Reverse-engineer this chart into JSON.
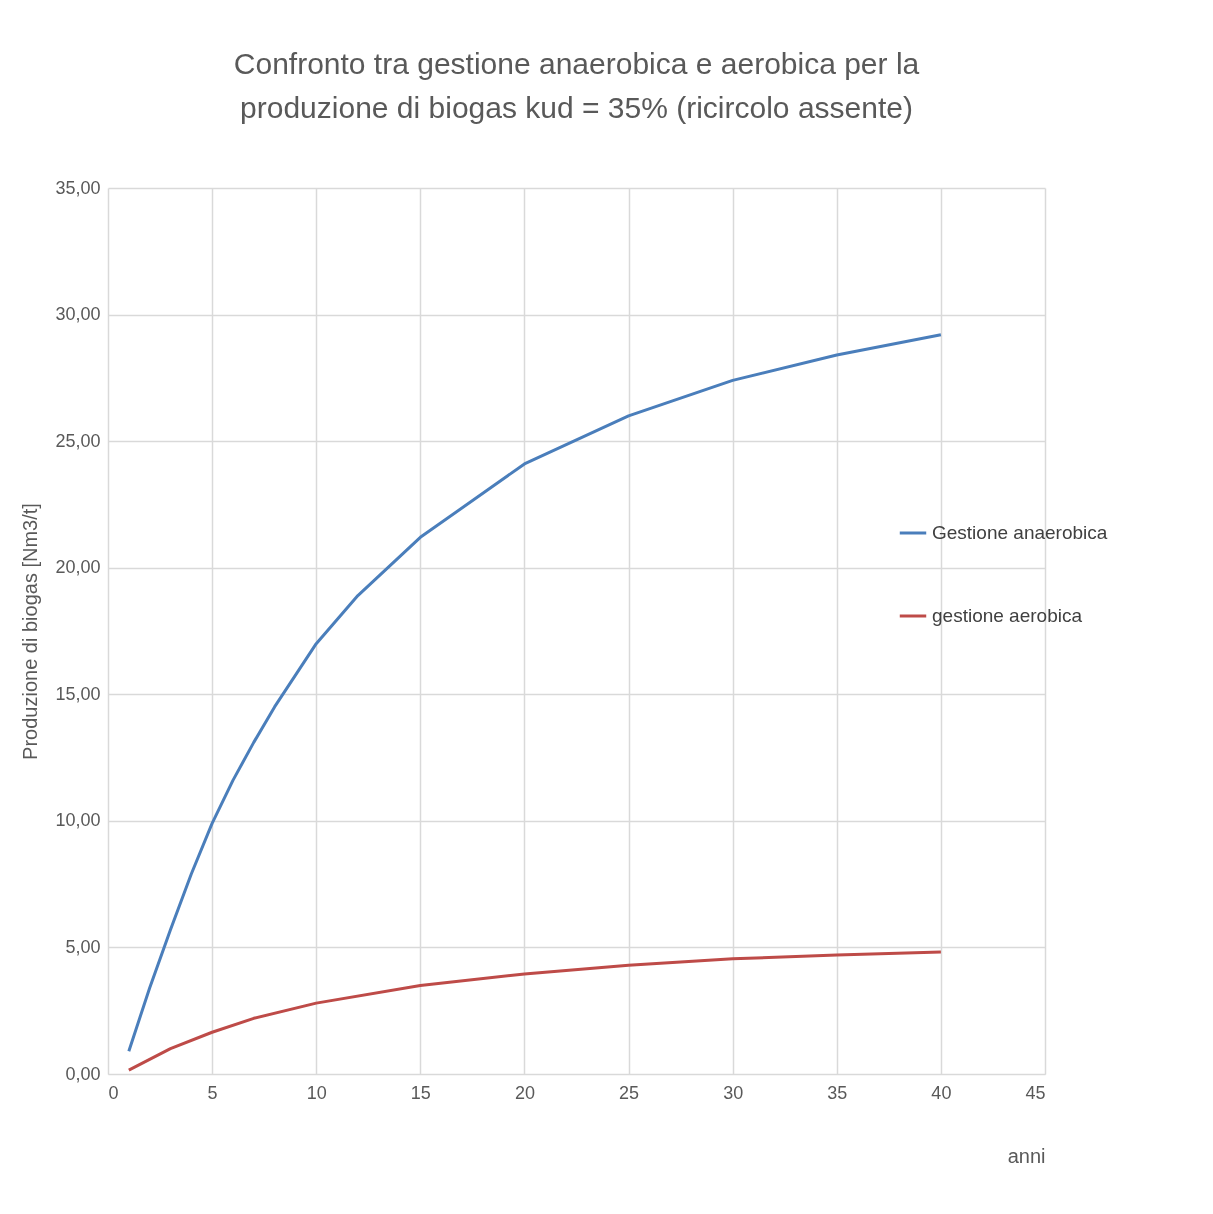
{
  "chart_data": {
    "type": "line",
    "title": "Confronto tra gestione anaerobica e aerobica per la produzione di biogas kud = 35% (ricircolo assente)",
    "xlabel": "anni",
    "ylabel": "Produzione di biogas [Nm3/t]",
    "xlim": [
      0,
      45
    ],
    "xticks": [
      0,
      5,
      10,
      15,
      20,
      25,
      30,
      35,
      40,
      45
    ],
    "ylim": [
      0,
      35
    ],
    "yticks": [
      {
        "value": 0,
        "label": "0,00"
      },
      {
        "value": 5,
        "label": "5,00"
      },
      {
        "value": 10,
        "label": "10,00"
      },
      {
        "value": 15,
        "label": "15,00"
      },
      {
        "value": 20,
        "label": "20,00"
      },
      {
        "value": 25,
        "label": "25,00"
      },
      {
        "value": 30,
        "label": "30,00"
      },
      {
        "value": 35,
        "label": "35,00"
      }
    ],
    "grid": true,
    "legend": "right",
    "marker": "none",
    "line_style": "solid",
    "series": [
      {
        "name": "Gestione anaerobica",
        "color": "#4a7ebb",
        "x": [
          1,
          2,
          3,
          4,
          5,
          6,
          7,
          8,
          10,
          12,
          15,
          20,
          25,
          30,
          35,
          40
        ],
        "values": [
          0.9,
          3.4,
          5.7,
          7.9,
          9.9,
          11.6,
          13.1,
          14.5,
          17.0,
          18.9,
          21.2,
          24.1,
          26.0,
          27.4,
          28.4,
          29.2
        ]
      },
      {
        "name": "gestione aerobica",
        "color": "#be4b48",
        "x": [
          1,
          3,
          5,
          7,
          10,
          15,
          20,
          25,
          30,
          35,
          40
        ],
        "values": [
          0.15,
          1.0,
          1.65,
          2.2,
          2.8,
          3.5,
          3.95,
          4.3,
          4.55,
          4.7,
          4.82
        ]
      }
    ]
  }
}
